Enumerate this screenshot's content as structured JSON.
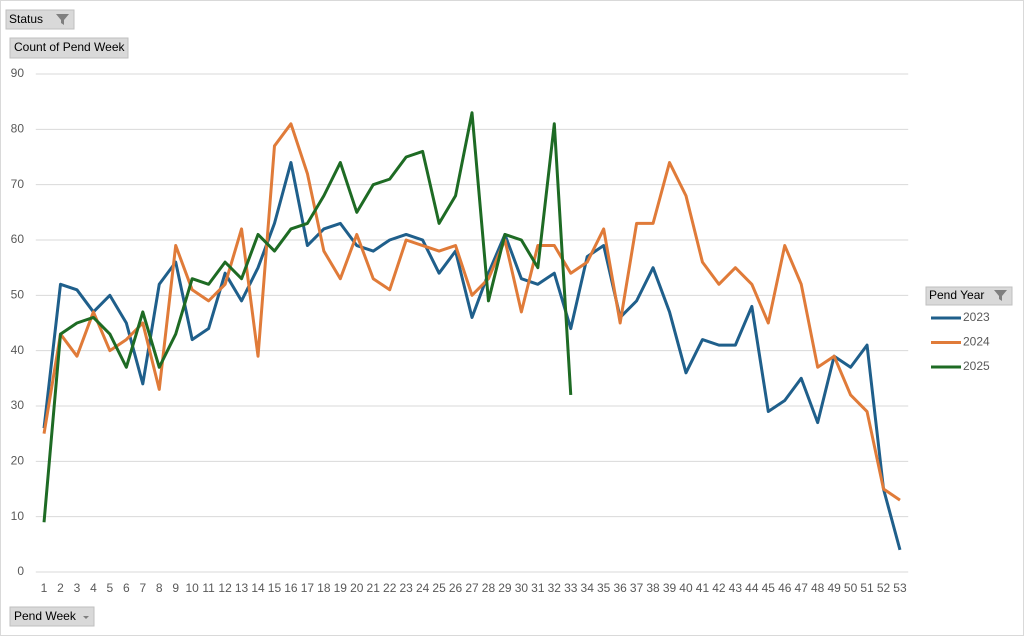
{
  "chart_data": {
    "type": "line",
    "filter_label": "Status",
    "value_label": "Count of Pend Week",
    "legend_title": "Pend Year",
    "x_label": "Pend Week",
    "categories": [
      "1",
      "2",
      "3",
      "4",
      "5",
      "6",
      "7",
      "8",
      "9",
      "10",
      "11",
      "12",
      "13",
      "14",
      "15",
      "16",
      "17",
      "18",
      "19",
      "20",
      "21",
      "22",
      "23",
      "24",
      "25",
      "26",
      "27",
      "28",
      "29",
      "30",
      "31",
      "32",
      "33",
      "34",
      "35",
      "36",
      "37",
      "38",
      "39",
      "40",
      "41",
      "42",
      "43",
      "44",
      "45",
      "46",
      "47",
      "48",
      "49",
      "50",
      "51",
      "52",
      "53"
    ],
    "series": [
      {
        "name": "2023",
        "color": "#1f5f8b",
        "values": [
          26,
          52,
          51,
          47,
          50,
          45,
          34,
          52,
          56,
          42,
          44,
          54,
          49,
          55,
          63,
          74,
          59,
          62,
          63,
          59,
          58,
          60,
          61,
          60,
          54,
          58,
          46,
          54,
          61,
          53,
          52,
          54,
          44,
          57,
          59,
          46,
          49,
          55,
          47,
          36,
          42,
          41,
          41,
          48,
          29,
          31,
          35,
          27,
          39,
          37,
          41,
          15,
          4
        ]
      },
      {
        "name": "2024",
        "color": "#e07b39",
        "values": [
          25,
          43,
          39,
          47,
          40,
          42,
          45,
          33,
          59,
          51,
          49,
          52,
          62,
          39,
          77,
          81,
          72,
          58,
          53,
          61,
          53,
          51,
          60,
          59,
          58,
          59,
          50,
          53,
          60,
          47,
          59,
          59,
          54,
          56,
          62,
          45,
          63,
          63,
          74,
          68,
          56,
          52,
          55,
          52,
          45,
          59,
          52,
          37,
          39,
          32,
          29,
          15,
          13
        ]
      },
      {
        "name": "2025",
        "color": "#1e6b24",
        "values": [
          9,
          43,
          45,
          46,
          43,
          37,
          47,
          37,
          43,
          53,
          52,
          56,
          53,
          61,
          58,
          62,
          63,
          68,
          74,
          65,
          70,
          71,
          75,
          76,
          63,
          68,
          83,
          49,
          61,
          60,
          55,
          81,
          32,
          null,
          null,
          null,
          null,
          null,
          null,
          null,
          null,
          null,
          null,
          null,
          null,
          null,
          null,
          null,
          null,
          null,
          null,
          null,
          null
        ]
      }
    ],
    "ylim": [
      0,
      90
    ],
    "yticks": [
      0,
      10,
      20,
      30,
      40,
      50,
      60,
      70,
      80,
      90
    ],
    "grid": true,
    "legend": "right"
  }
}
